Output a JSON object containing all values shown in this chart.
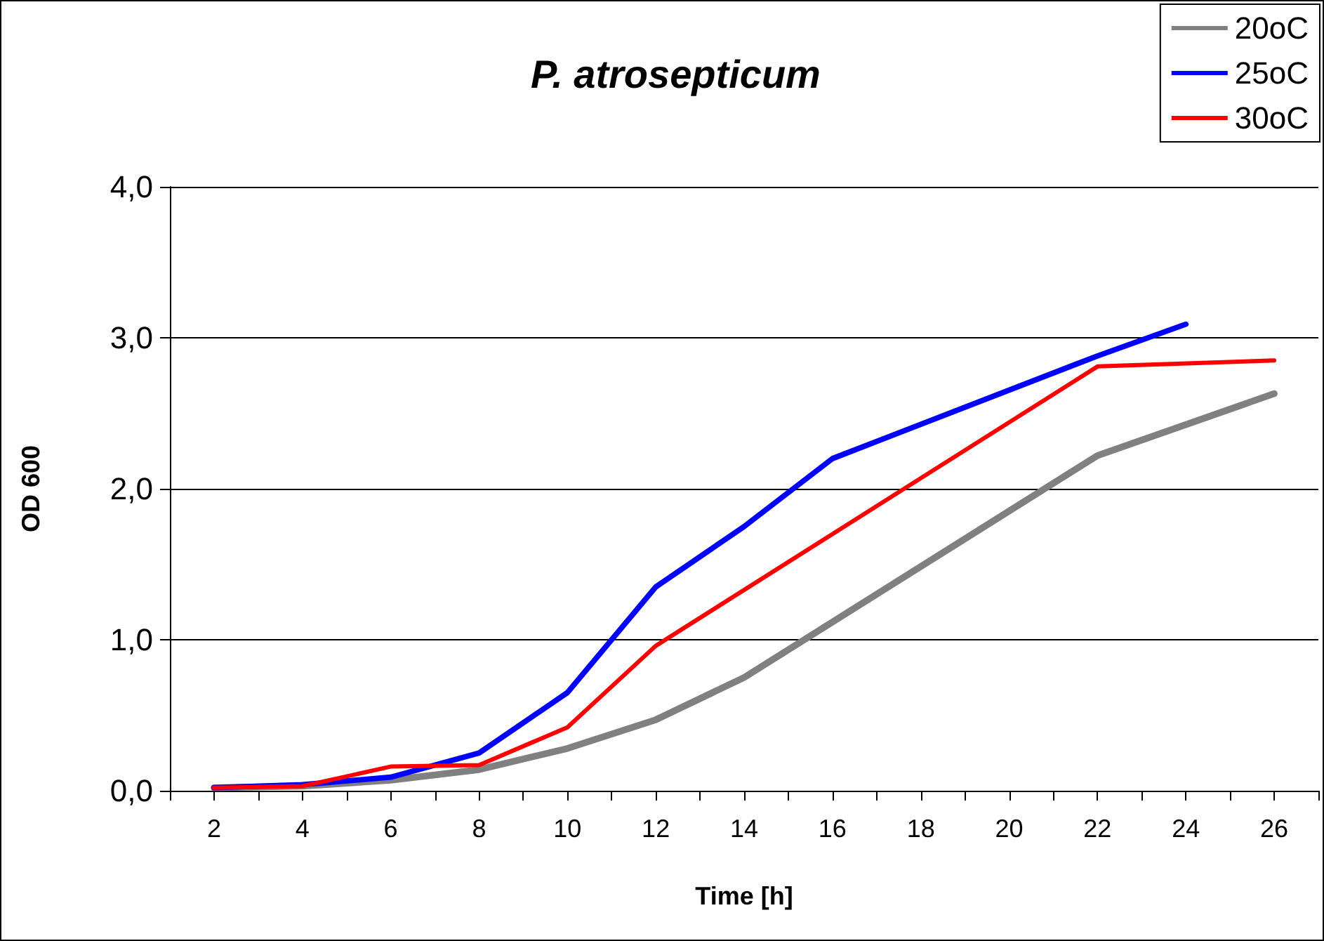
{
  "chart_data": {
    "type": "line",
    "title": "P. atrosepticum",
    "xlabel": "Time [h]",
    "ylabel": "OD 600",
    "xlim": [
      1,
      27
    ],
    "xticks": [
      {
        "value": 1,
        "label": null
      },
      2,
      {
        "value": 3,
        "label": null
      },
      4,
      {
        "value": 5,
        "label": null
      },
      6,
      {
        "value": 7,
        "label": null
      },
      8,
      {
        "value": 9,
        "label": null
      },
      10,
      {
        "value": 11,
        "label": null
      },
      12,
      {
        "value": 13,
        "label": null
      },
      14,
      {
        "value": 15,
        "label": null
      },
      16,
      {
        "value": 17,
        "label": null
      },
      18,
      {
        "value": 19,
        "label": null
      },
      20,
      {
        "value": 21,
        "label": null
      },
      22,
      {
        "value": 23,
        "label": null
      },
      24,
      {
        "value": 25,
        "label": null
      },
      26,
      {
        "value": 27,
        "label": null
      }
    ],
    "ylim": [
      0,
      4
    ],
    "yticks": [
      {
        "value": 0,
        "label": "0,0"
      },
      {
        "value": 1,
        "label": "1,0"
      },
      {
        "value": 2,
        "label": "2,0"
      },
      {
        "value": 3,
        "label": "3,0"
      },
      {
        "value": 4,
        "label": "4,0"
      }
    ],
    "grid": "y",
    "legend": "top right",
    "marker": "none",
    "line_style": "solid",
    "series": [
      {
        "name": "20oC",
        "color": "#808080",
        "x": [
          2,
          4,
          6,
          8,
          10,
          12,
          14,
          22,
          26
        ],
        "values": [
          0.02,
          0.03,
          0.07,
          0.14,
          0.28,
          0.47,
          0.75,
          2.22,
          2.63
        ]
      },
      {
        "name": "25oC",
        "color": "#0000ff",
        "x": [
          2,
          4,
          6,
          8,
          10,
          12,
          14,
          16,
          22,
          24
        ],
        "values": [
          0.02,
          0.04,
          0.09,
          0.25,
          0.65,
          1.35,
          1.75,
          2.2,
          2.88,
          3.09
        ]
      },
      {
        "name": "30oC",
        "color": "#ff0000",
        "x": [
          2,
          4,
          6,
          8,
          10,
          12,
          22,
          26
        ],
        "values": [
          0.02,
          0.03,
          0.16,
          0.17,
          0.42,
          0.96,
          2.81,
          2.85
        ]
      }
    ]
  }
}
